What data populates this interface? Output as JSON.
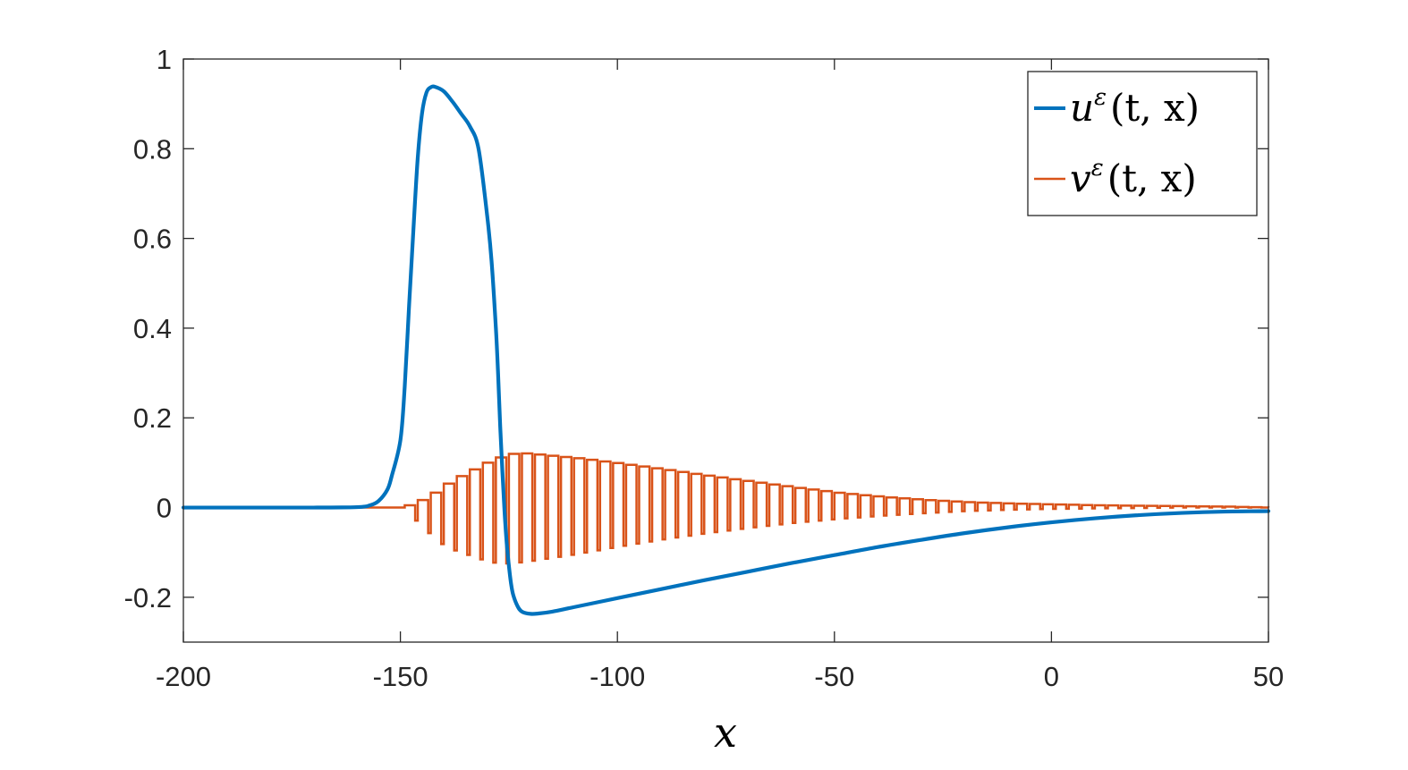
{
  "chart_data": {
    "type": "line",
    "title": "",
    "xlabel": "x",
    "ylabel": "",
    "xlim": [
      -200,
      50
    ],
    "ylim": [
      -0.3,
      1
    ],
    "xticks": [
      -200,
      -150,
      -100,
      -50,
      0,
      50
    ],
    "yticks": [
      -0.2,
      0,
      0.2,
      0.4,
      0.6,
      0.8,
      1
    ],
    "xtick_labels": [
      "-200",
      "-150",
      "-100",
      "-50",
      "0",
      "50"
    ],
    "ytick_labels": [
      "-0.2",
      "0",
      "0.2",
      "0.4",
      "0.6",
      "0.8",
      "1"
    ],
    "grid": false,
    "legend": {
      "position": "top-right"
    },
    "series": [
      {
        "name": "uε(t,x)",
        "color": "#0072BD",
        "x": [
          -200,
          -170,
          -160,
          -157,
          -155,
          -153,
          -152,
          -150,
          -149,
          -148,
          -147,
          -146,
          -145,
          -144,
          -143,
          -142,
          -140,
          -138,
          -136,
          -134,
          -132,
          -130,
          -129,
          -128,
          -127.5,
          -127,
          -126.5,
          -126,
          -125.5,
          -125,
          -124.5,
          -124,
          -123,
          -122,
          -120,
          -118,
          -115,
          -110,
          -100,
          -90,
          -80,
          -70,
          -60,
          -50,
          -40,
          -30,
          -20,
          -10,
          0,
          10,
          20,
          30,
          40,
          50
        ],
        "values": [
          0,
          0,
          0.001,
          0.005,
          0.015,
          0.04,
          0.07,
          0.15,
          0.27,
          0.45,
          0.62,
          0.78,
          0.88,
          0.925,
          0.937,
          0.938,
          0.928,
          0.905,
          0.878,
          0.85,
          0.8,
          0.65,
          0.55,
          0.4,
          0.3,
          0.18,
          0.08,
          -0.01,
          -0.08,
          -0.13,
          -0.17,
          -0.195,
          -0.22,
          -0.232,
          -0.237,
          -0.236,
          -0.232,
          -0.222,
          -0.202,
          -0.182,
          -0.162,
          -0.143,
          -0.124,
          -0.106,
          -0.088,
          -0.072,
          -0.057,
          -0.044,
          -0.033,
          -0.024,
          -0.017,
          -0.012,
          -0.009,
          -0.008
        ]
      },
      {
        "name": "vε(t,x)",
        "color": "#D95319",
        "envelope_x": [
          -200,
          -150,
          -148,
          -145,
          -142,
          -139,
          -136,
          -133,
          -130,
          -127,
          -124,
          -121,
          -110,
          -100,
          -90,
          -80,
          -70,
          -60,
          -50,
          -40,
          -30,
          -20,
          -10,
          0,
          10,
          20,
          30,
          40,
          50
        ],
        "envelope_upper": [
          0,
          0,
          0.01,
          0.02,
          0.04,
          0.06,
          0.075,
          0.09,
          0.105,
          0.115,
          0.122,
          0.12,
          0.11,
          0.098,
          0.085,
          0.071,
          0.058,
          0.045,
          0.033,
          0.024,
          0.017,
          0.012,
          0.009,
          0.007,
          0.005,
          0.004,
          0.003,
          0.002,
          0
        ],
        "envelope_lower": [
          0,
          0,
          -0.015,
          -0.04,
          -0.07,
          -0.09,
          -0.1,
          -0.11,
          -0.12,
          -0.125,
          -0.124,
          -0.121,
          -0.105,
          -0.088,
          -0.072,
          -0.058,
          -0.046,
          -0.035,
          -0.026,
          -0.019,
          -0.013,
          -0.008,
          -0.005,
          -0.003,
          -0.002,
          -0.001,
          0,
          0,
          0
        ],
        "oscillation_start": -149,
        "oscillation_end": 50,
        "oscillation_period": 3.0
      }
    ]
  },
  "legend": {
    "entries": [
      {
        "base": "u",
        "sup": "ε",
        "args": "(t, x)"
      },
      {
        "base": "v",
        "sup": "ε",
        "args": "(t, x)"
      }
    ]
  }
}
